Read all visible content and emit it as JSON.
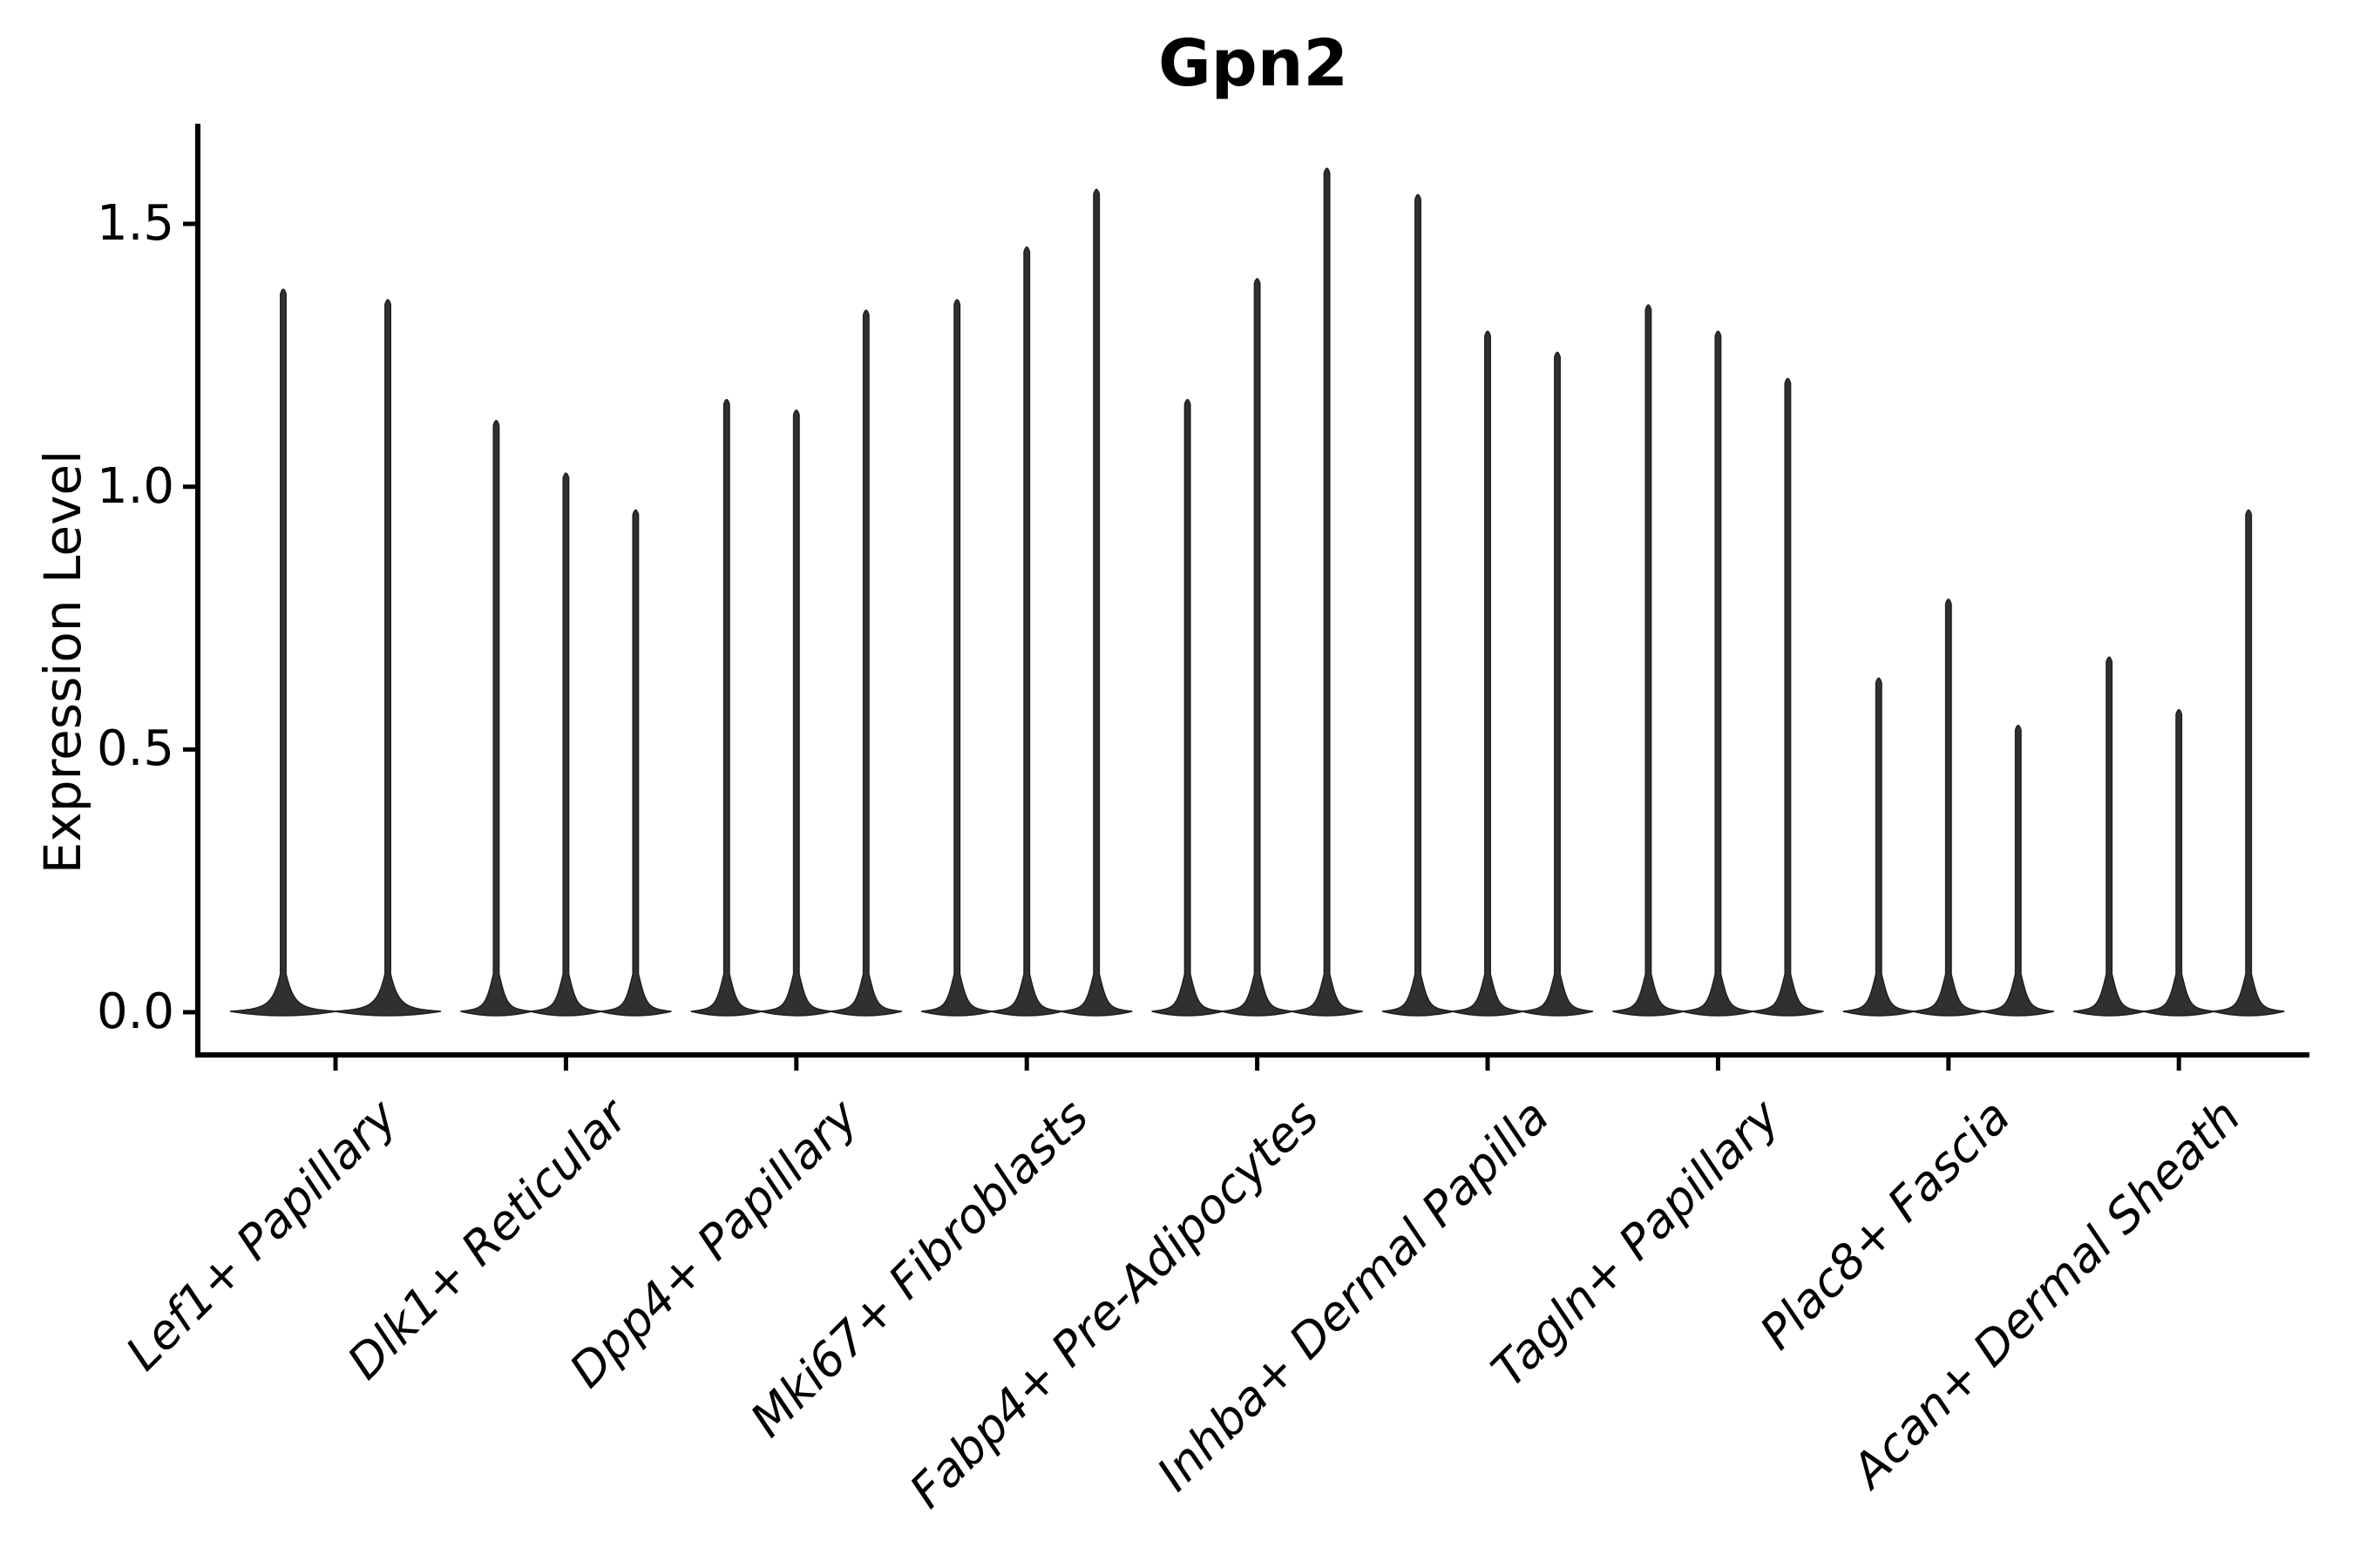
{
  "title": "Gpn2",
  "y_axis": {
    "label": "Expression Level",
    "tick_labels": [
      "0.0",
      "0.5",
      "1.0",
      "1.5"
    ]
  },
  "x_axis": {
    "tick_labels": [
      "Lef1+ Papillary",
      "Dlk1+ Reticular",
      "Dpp4+ Papillary",
      "Mki67+ Fibroblasts",
      "Fabp4+ Pre-Adipocytes",
      "Inhba+ Dermal Papilla",
      "Tagln+ Papillary",
      "Plac8+ Fascia",
      "Acan+ Dermal Sheath"
    ]
  },
  "colors": {
    "violin": "#303030",
    "violin_edge": "#1f1f1f",
    "axis": "#000000",
    "background": "#ffffff"
  },
  "chart_data": {
    "type": "violin",
    "title": "Gpn2",
    "xlabel": "",
    "ylabel": "Expression Level",
    "ylim": [
      -0.08,
      1.69
    ],
    "yticks": [
      0.0,
      0.5,
      1.0,
      1.5
    ],
    "grid": false,
    "legend": "none",
    "shape_note": "each violin is a needle shape: dense flat mass at 0 with a thin vertical tail up to its max value",
    "categories": [
      "Lef1+ Papillary",
      "Dlk1+ Reticular",
      "Dpp4+ Papillary",
      "Mki67+ Fibroblasts",
      "Fabp4+ Pre-Adipocytes",
      "Inhba+ Dermal Papilla",
      "Tagln+ Papillary",
      "Plac8+ Fascia",
      "Acan+ Dermal Sheath"
    ],
    "violins_per_category": [
      2,
      3,
      3,
      3,
      3,
      3,
      3,
      3,
      3
    ],
    "violin_max_values": [
      [
        1.38,
        1.36
      ],
      [
        1.13,
        1.03,
        0.96
      ],
      [
        1.17,
        1.15,
        1.34
      ],
      [
        1.36,
        1.46,
        1.57
      ],
      [
        1.17,
        1.4,
        1.61
      ],
      [
        1.56,
        1.3,
        1.26
      ],
      [
        1.35,
        1.3,
        1.21
      ],
      [
        0.64,
        0.79,
        0.55
      ],
      [
        0.68,
        0.58,
        0.96
      ]
    ]
  }
}
